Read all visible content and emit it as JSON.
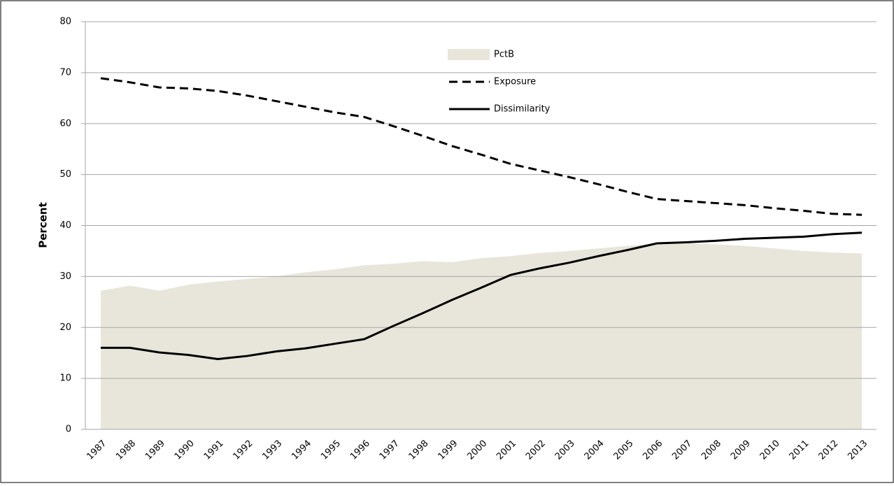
{
  "chart_data": {
    "type": "line",
    "ylabel": "Percent",
    "categories": [
      "1987",
      "1988",
      "1989",
      "1990",
      "1991",
      "1992",
      "1993",
      "1994",
      "1995",
      "1996",
      "1997",
      "1998",
      "1999",
      "2000",
      "2001",
      "2002",
      "2003",
      "2004",
      "2005",
      "2006",
      "2007",
      "2008",
      "2009",
      "2010",
      "2011",
      "2012",
      "2013"
    ],
    "series": [
      {
        "name": "PctB",
        "kind": "area",
        "color": "#e8e5da",
        "values": [
          27.2,
          28.2,
          27.2,
          28.4,
          29,
          29.5,
          30,
          30.8,
          31.4,
          32.2,
          32.5,
          33,
          32.8,
          33.6,
          34,
          34.6,
          35,
          35.5,
          36,
          36.5,
          36.5,
          36.3,
          36,
          35.5,
          35,
          34.7,
          34.5
        ]
      },
      {
        "name": "Exposure",
        "kind": "dashed",
        "color": "#000000",
        "values": [
          68.9,
          68.1,
          67.1,
          66.9,
          66.4,
          65.5,
          64.4,
          63.3,
          62.2,
          61.3,
          59.5,
          57.6,
          55.6,
          53.9,
          52.1,
          50.8,
          49.5,
          48.1,
          46.6,
          45.2,
          44.8,
          44.4,
          44,
          43.4,
          42.9,
          42.3,
          42.1
        ]
      },
      {
        "name": "Dissimilarity",
        "kind": "solid",
        "color": "#000000",
        "values": [
          16,
          16,
          15.1,
          14.6,
          13.8,
          14.4,
          15.3,
          15.9,
          16.8,
          17.7,
          20.3,
          22.8,
          25.4,
          27.8,
          30.3,
          31.6,
          32.7,
          34,
          35.2,
          36.5,
          36.7,
          37,
          37.4,
          37.6,
          37.8,
          38.3,
          38.6
        ]
      }
    ],
    "ylim": [
      0,
      80
    ],
    "yticks": [
      0,
      10,
      20,
      30,
      40,
      50,
      60,
      70,
      80
    ],
    "grid": true
  }
}
